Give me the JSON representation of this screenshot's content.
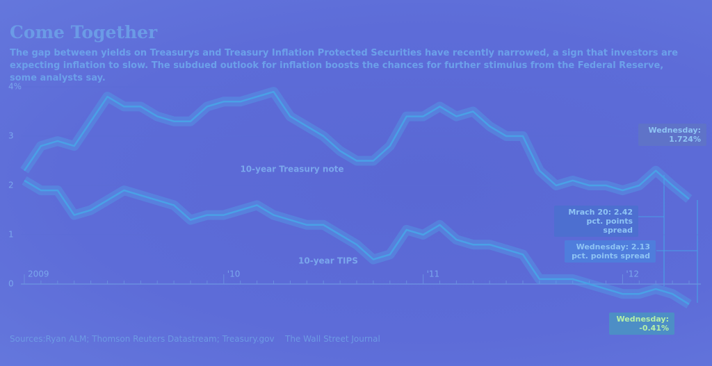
{
  "chart_data": {
    "type": "line",
    "title": "Come Together",
    "subtitle": "The gap between yields on Treasurys and Treasury Inflation Protected Securities have recently narrowed, a sign that investors are expecting inflation to slow. The subdued outlook for inflation boosts the chances for further stimulus from the Federal Reserve, some analysts say.",
    "categories": [
      "2009",
      null,
      null,
      null,
      null,
      null,
      null,
      null,
      null,
      null,
      null,
      null,
      "'10",
      null,
      null,
      null,
      null,
      null,
      null,
      null,
      null,
      null,
      null,
      null,
      "'11",
      null,
      null,
      null,
      null,
      null,
      null,
      null,
      null,
      null,
      null,
      null,
      "'12",
      null,
      null,
      null,
      null
    ],
    "series": [
      {
        "name": "10-year Treasury note",
        "color": "#4aa0e6",
        "values": [
          2.3,
          2.8,
          2.9,
          2.8,
          3.3,
          3.8,
          3.6,
          3.6,
          3.4,
          3.3,
          3.3,
          3.6,
          3.7,
          3.7,
          3.8,
          3.9,
          3.4,
          3.2,
          3.0,
          2.7,
          2.5,
          2.5,
          2.8,
          3.4,
          3.4,
          3.6,
          3.4,
          3.5,
          3.2,
          3.0,
          3.0,
          2.3,
          2.0,
          2.1,
          2.0,
          2.0,
          1.9,
          2.0,
          2.3,
          2.0,
          1.724
        ]
      },
      {
        "name": "10-year TIPS",
        "color": "#4aa0e6",
        "values": [
          2.1,
          1.9,
          1.9,
          1.4,
          1.5,
          1.7,
          1.9,
          1.8,
          1.7,
          1.6,
          1.3,
          1.4,
          1.4,
          1.5,
          1.6,
          1.4,
          1.3,
          1.2,
          1.2,
          1.0,
          0.8,
          0.5,
          0.6,
          1.1,
          1.0,
          1.2,
          0.9,
          0.8,
          0.8,
          0.7,
          0.6,
          0.1,
          0.1,
          0.1,
          0.0,
          -0.1,
          -0.2,
          -0.2,
          -0.1,
          -0.2,
          -0.41
        ]
      }
    ],
    "ylim": [
      -0.5,
      4.2
    ],
    "yticks": [
      {
        "value": 4,
        "label": "4%"
      },
      3,
      2,
      1,
      0
    ],
    "annotations": [
      "Wednesday: 1.724%",
      "Mrach 20: 2.42 pct. points spread",
      "Wednesday: 2.13 pct. points spread",
      "Wednesday: -0.41%"
    ],
    "sources": "Sources:Ryan ALM; Thomson Reuters Datastream; Treasury.gov",
    "publisher": "The Wall Street Journal"
  }
}
